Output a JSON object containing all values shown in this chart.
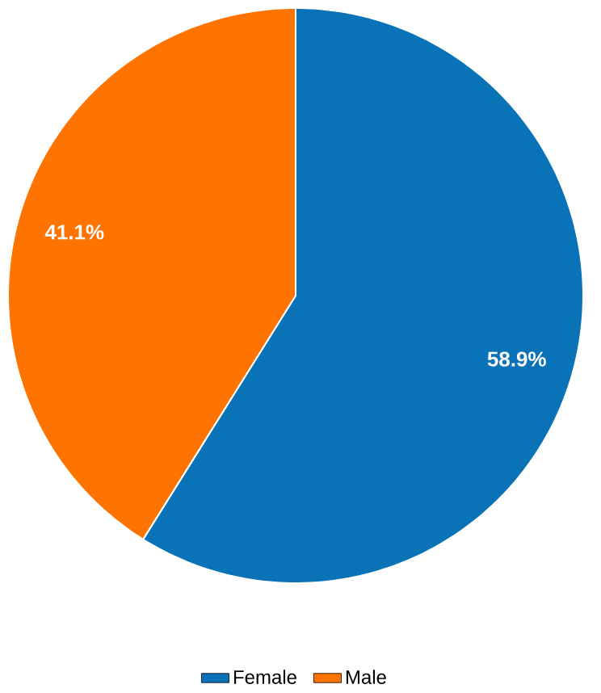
{
  "chart_data": {
    "type": "pie",
    "categories": [
      "Female",
      "Male"
    ],
    "values": [
      58.9,
      41.1
    ],
    "colors": [
      "#0a73b7",
      "#ff7400"
    ],
    "value_labels": [
      "58.9%",
      "41.1%"
    ],
    "legend": "bottom"
  }
}
